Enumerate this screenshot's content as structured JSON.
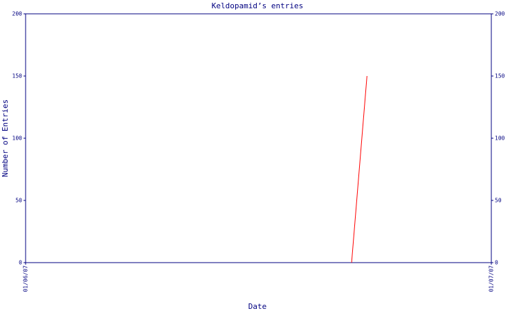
{
  "chart_data": {
    "type": "line",
    "title": "Keldopamid’s entries",
    "x_label": "Date",
    "y_label": "Number of Entries",
    "x": [
      0.7,
      0.733
    ],
    "series": [
      {
        "color": "#ff0000",
        "values": [
          0,
          150
        ]
      }
    ],
    "xlim": [
      0,
      1
    ],
    "xticks": [
      {
        "value": 0,
        "label": "01/06/07"
      },
      {
        "value": 1,
        "label": "01/07/07"
      }
    ],
    "ylim": [
      0,
      200
    ],
    "yticks": [
      0,
      50,
      100,
      150,
      200
    ],
    "y2lim": [
      0,
      200
    ],
    "y2ticks": [
      0,
      50,
      100,
      150,
      200
    ],
    "axis_color": "#000080"
  }
}
